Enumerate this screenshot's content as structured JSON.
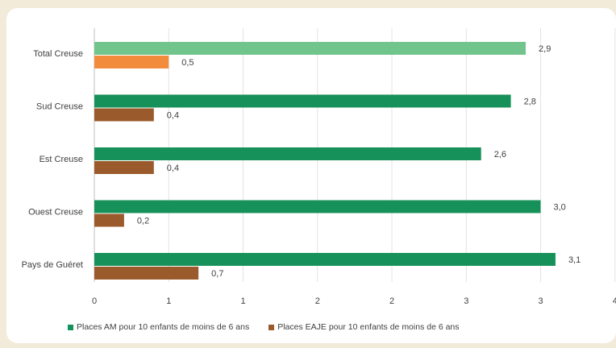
{
  "chart_data": {
    "type": "bar",
    "orientation": "horizontal",
    "categories": [
      "Total Creuse",
      "Sud Creuse",
      "Est Creuse",
      "Ouest Creuse",
      "Pays de Guéret"
    ],
    "series": [
      {
        "name": "Places AM pour 10 enfants de moins de 6 ans",
        "values": [
          2.9,
          2.8,
          2.6,
          3.0,
          3.1
        ],
        "labels": [
          "2,9",
          "2,8",
          "2,6",
          "3,0",
          "3,1"
        ],
        "color": "#17915a",
        "highlight_color": "#72c48d"
      },
      {
        "name": "Places EAJE pour 10 enfants de moins de 6 ans",
        "values": [
          0.5,
          0.4,
          0.4,
          0.2,
          0.7
        ],
        "labels": [
          "0,5",
          "0,4",
          "0,4",
          "0,2",
          "0,7"
        ],
        "color": "#9a5a2b",
        "highlight_color": "#f28c3c"
      }
    ],
    "highlight_category": "Total Creuse",
    "x_axis": {
      "ticks": [
        0,
        0.5,
        1,
        1.5,
        2,
        2.5,
        3,
        3.5
      ],
      "tick_labels": [
        "0",
        "1",
        "1",
        "2",
        "2",
        "3",
        "3",
        "4"
      ],
      "range": [
        0,
        3.5
      ]
    },
    "gridlines": true,
    "legend_position": "bottom"
  }
}
